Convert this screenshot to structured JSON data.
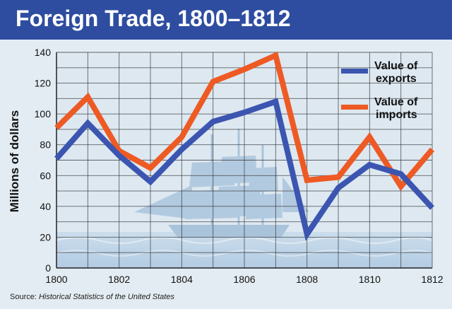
{
  "header": {
    "title": "Foreign Trade, 1800–1812"
  },
  "source": {
    "label": "Source:",
    "title": "Historical Statistics of the United States"
  },
  "chart_data": {
    "type": "line",
    "title": "Foreign Trade, 1800–1812",
    "xlabel": "",
    "ylabel": "Millions of dollars",
    "xlim": [
      1800,
      1812
    ],
    "ylim": [
      0,
      140
    ],
    "x_ticks": [
      1800,
      1802,
      1804,
      1806,
      1808,
      1810,
      1812
    ],
    "y_ticks": [
      0,
      20,
      40,
      60,
      80,
      100,
      120,
      140
    ],
    "grid": true,
    "legend_position": "top-right",
    "x": [
      1800,
      1801,
      1802,
      1803,
      1804,
      1805,
      1806,
      1807,
      1808,
      1809,
      1810,
      1811,
      1812
    ],
    "series": [
      {
        "name": "Value of exports",
        "color": "#3b55b0",
        "values": [
          71,
          94,
          73,
          56,
          77,
          95,
          101,
          108,
          22,
          52,
          67,
          61,
          39
        ]
      },
      {
        "name": "Value of imports",
        "color": "#ee5a24",
        "values": [
          91,
          111,
          76,
          65,
          85,
          121,
          129,
          138,
          57,
          59,
          85,
          53,
          77
        ]
      }
    ]
  },
  "legend": {
    "items": [
      {
        "line1": "Value of",
        "line2": "exports",
        "color": "#3b55b0"
      },
      {
        "line1": "Value of",
        "line2": "imports",
        "color": "#ee5a24"
      }
    ]
  }
}
